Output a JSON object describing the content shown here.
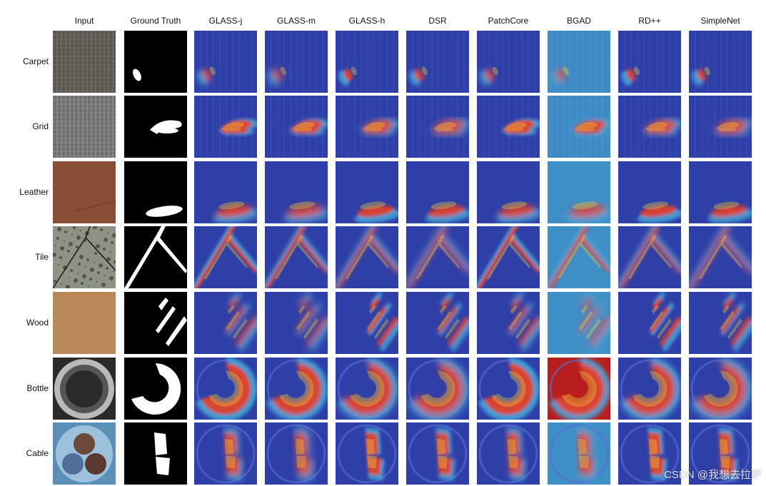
{
  "columns": [
    "Input",
    "Ground Truth",
    "GLASS-j",
    "GLASS-m",
    "GLASS-h",
    "DSR",
    "PatchCore",
    "BGAD",
    "RD++",
    "SimpleNet"
  ],
  "rows": [
    "Carpet",
    "Grid",
    "Leather",
    "Tile",
    "Wood",
    "Bottle",
    "Cable"
  ],
  "watermark": "CSDN @我想去拉萨",
  "colors": {
    "heat_low": "#2e3fa8",
    "heat_mid": "#3fa6d6",
    "heat_high": "#e0402a",
    "heat_peak": "#f2d640",
    "mask_bg": "#000000",
    "mask_fg": "#ffffff"
  }
}
